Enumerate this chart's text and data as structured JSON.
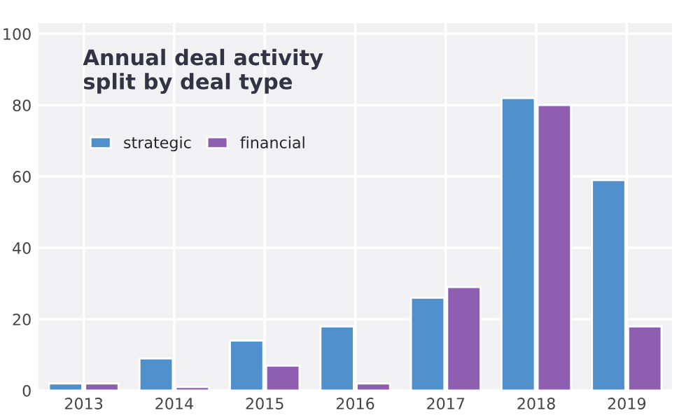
{
  "chart_data": {
    "type": "bar",
    "title": "Annual deal activity\nsplit by deal type",
    "categories": [
      "2013",
      "2014",
      "2015",
      "2016",
      "2017",
      "2018",
      "2019"
    ],
    "series": [
      {
        "name": "strategic",
        "color": "#4f8fcc",
        "values": [
          2,
          9,
          14,
          18,
          26,
          82,
          59
        ]
      },
      {
        "name": "financial",
        "color": "#8e5fb0",
        "values": [
          2,
          1,
          7,
          2,
          29,
          80,
          18
        ]
      }
    ],
    "ylim": [
      0,
      103
    ],
    "yticks": [
      0,
      20,
      40,
      60,
      80,
      100
    ],
    "grid": true,
    "legend": "upper left"
  }
}
